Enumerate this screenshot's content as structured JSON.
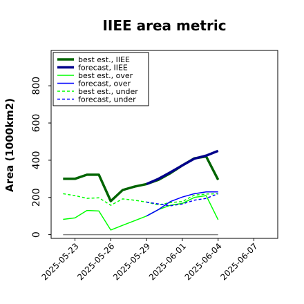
{
  "chart_data": {
    "type": "line",
    "title": "IIEE area metric",
    "ylabel": "Area (1000km2)",
    "xlabel": "",
    "ylim": [
      -20,
      990
    ],
    "yticks": [
      0,
      200,
      400,
      600,
      800
    ],
    "ytick_labels": [
      "0",
      "200",
      "400",
      "600",
      "800"
    ],
    "xlim": [
      "2025-05-21",
      "2025-06-09"
    ],
    "xticks": [
      "2025-05-23",
      "2025-05-26",
      "2025-05-29",
      "2025-06-01",
      "2025-06-04",
      "2025-06-07"
    ],
    "xtick_labels": [
      "2025-05-23",
      "2025-05-26",
      "2025-05-29",
      "2025-06-01",
      "2025-06-04",
      "2025-06-07"
    ],
    "highlighted_xtick": "2025-05-29",
    "highlight_color": "#228b22",
    "legend_position": "upper left",
    "grid": false,
    "series": [
      {
        "name": "best est., IIEE",
        "color": "#006400",
        "style": "solid",
        "weight": "thick",
        "x": [
          "2025-05-22",
          "2025-05-23",
          "2025-05-24",
          "2025-05-25",
          "2025-05-26",
          "2025-05-27",
          "2025-05-28",
          "2025-05-29",
          "2025-05-30",
          "2025-05-31",
          "2025-06-01",
          "2025-06-02",
          "2025-06-03",
          "2025-06-04"
        ],
        "y": [
          300,
          300,
          322,
          322,
          180,
          240,
          258,
          272,
          295,
          330,
          372,
          410,
          420,
          295
        ]
      },
      {
        "name": "forecast, IIEE",
        "color": "#00008b",
        "style": "solid",
        "weight": "thick",
        "x": [
          "2025-05-29",
          "2025-05-30",
          "2025-05-31",
          "2025-06-01",
          "2025-06-02",
          "2025-06-03",
          "2025-06-04"
        ],
        "y": [
          272,
          300,
          335,
          372,
          408,
          425,
          450
        ]
      },
      {
        "name": "best est., over",
        "color": "#00ff00",
        "style": "solid",
        "weight": "thin",
        "x": [
          "2025-05-22",
          "2025-05-23",
          "2025-05-24",
          "2025-05-25",
          "2025-05-26",
          "2025-05-27",
          "2025-05-28",
          "2025-05-29",
          "2025-05-30",
          "2025-05-31",
          "2025-06-01",
          "2025-06-02",
          "2025-06-03",
          "2025-06-04"
        ],
        "y": [
          82,
          90,
          130,
          127,
          25,
          50,
          75,
          100,
          135,
          158,
          168,
          200,
          210,
          80
        ]
      },
      {
        "name": "forecast, over",
        "color": "#0000ff",
        "style": "solid",
        "weight": "thin",
        "x": [
          "2025-05-29",
          "2025-05-30",
          "2025-05-31",
          "2025-06-01",
          "2025-06-02",
          "2025-06-03",
          "2025-06-04"
        ],
        "y": [
          100,
          135,
          178,
          202,
          220,
          230,
          230
        ]
      },
      {
        "name": "best est., under",
        "color": "#00ff00",
        "style": "dashed",
        "weight": "thin",
        "x": [
          "2025-05-22",
          "2025-05-23",
          "2025-05-24",
          "2025-05-25",
          "2025-05-26",
          "2025-05-27",
          "2025-05-28",
          "2025-05-29",
          "2025-05-30",
          "2025-05-31",
          "2025-06-01",
          "2025-06-02",
          "2025-06-03",
          "2025-06-04"
        ],
        "y": [
          220,
          210,
          195,
          198,
          158,
          192,
          185,
          175,
          160,
          172,
          178,
          212,
          218,
          220
        ]
      },
      {
        "name": "forecast, under",
        "color": "#0000ff",
        "style": "dashed",
        "weight": "thin",
        "x": [
          "2025-05-29",
          "2025-05-30",
          "2025-05-31",
          "2025-06-01",
          "2025-06-02",
          "2025-06-03",
          "2025-06-04"
        ],
        "y": [
          175,
          165,
          155,
          165,
          185,
          195,
          220
        ]
      },
      {
        "name": "",
        "color": "#808080",
        "style": "solid",
        "weight": "thin",
        "x": [
          "2025-05-22",
          "2025-06-04"
        ],
        "y": [
          0,
          0
        ]
      }
    ]
  }
}
